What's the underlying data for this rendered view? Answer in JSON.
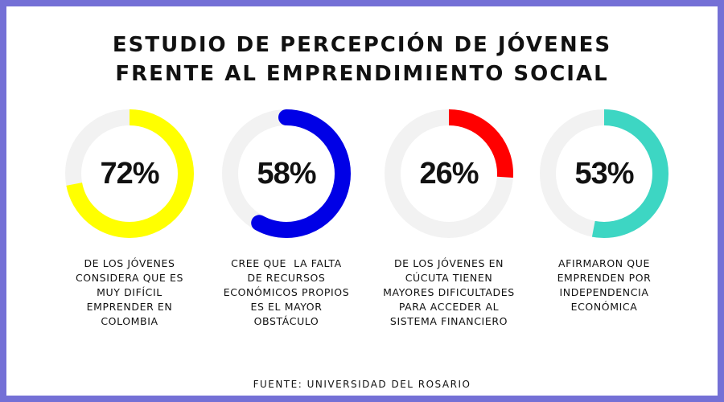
{
  "title_lines": [
    "ESTUDIO DE PERCEPCIÓN DE JÓVENES",
    "FRENTE AL EMPRENDIMIENTO SOCIAL"
  ],
  "source": "FUENTE: UNIVERSIDAD DEL ROSARIO",
  "track_color": "#f2f2f2",
  "chart_data": {
    "type": "pie",
    "subtype": "donut-progress",
    "title": "ESTUDIO DE PERCEPCIÓN DE JÓVENES FRENTE AL EMPRENDIMIENTO SOCIAL",
    "max": 100,
    "items": [
      {
        "value": 72,
        "label": "72%",
        "color": "#ffff00",
        "description_lines": [
          "DE LOS JÓVENES",
          "CONSIDERA QUE ES",
          "MUY DIFÍCIL",
          "EMPRENDER EN",
          "COLOMBIA"
        ]
      },
      {
        "value": 58,
        "label": "58%",
        "color": "#0000e6",
        "description_lines": [
          "CREE QUE  LA FALTA",
          "DE RECURSOS",
          "ECONÓMICOS PROPIOS",
          "ES EL MAYOR",
          "OBSTÁCULO"
        ]
      },
      {
        "value": 26,
        "label": "26%",
        "color": "#ff0000",
        "description_lines": [
          "DE LOS JÓVENES EN",
          "CÚCUTA TIENEN",
          "MAYORES DIFICULTADES",
          "PARA ACCEDER AL",
          "SISTEMA FINANCIERO"
        ]
      },
      {
        "value": 53,
        "label": "53%",
        "color": "#3dd6c3",
        "description_lines": [
          "AFIRMARON QUE",
          "EMPRENDEN POR",
          "INDEPENDENCIA",
          "ECONÓMICA"
        ]
      }
    ]
  }
}
